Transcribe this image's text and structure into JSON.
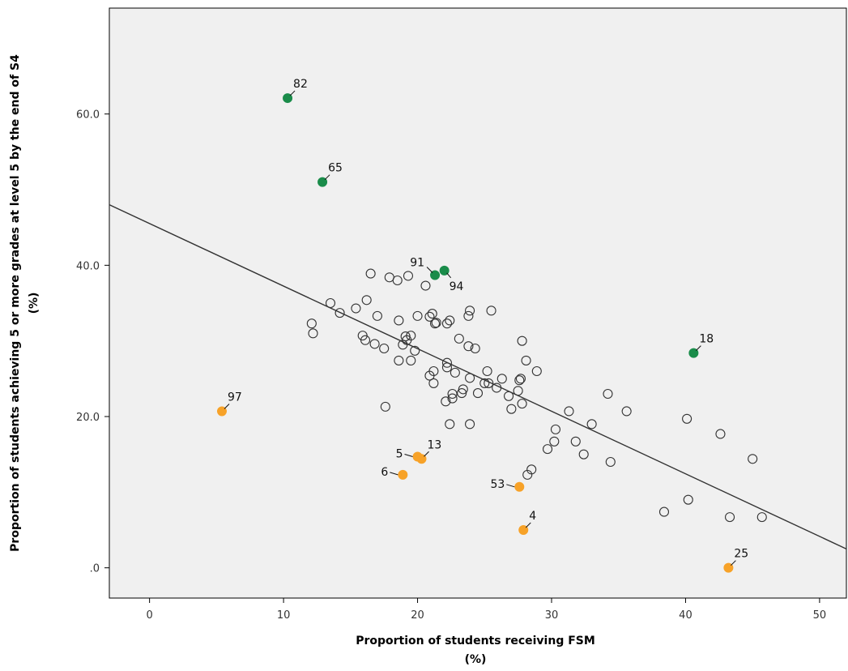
{
  "chart_data": {
    "type": "scatter",
    "xlabel": "Proportion of students receiving FSM",
    "xlabel_unit": "(%)",
    "ylabel": "Proportion of students achieving 5 or more grades at level 5 by the end of S4",
    "ylabel_unit": "(%)",
    "xlim": [
      -3,
      52
    ],
    "ylim": [
      -4,
      74
    ],
    "xticks": [
      0,
      10,
      20,
      30,
      40,
      50
    ],
    "xtick_labels": [
      "0",
      "10",
      "20",
      "30",
      "40",
      "50"
    ],
    "yticks": [
      0,
      20,
      40,
      60
    ],
    "ytick_labels": [
      ".0",
      "20.0",
      "40.0",
      "60.0"
    ],
    "grid": false,
    "colors": {
      "plot_bg": "#f0f0f0",
      "open_marker": "#333333",
      "high_outlier": "#1a8c4a",
      "low_outlier": "#f7a228",
      "fit_line": "#333333"
    },
    "fit_line": {
      "x": [
        -3,
        52
      ],
      "y": [
        48,
        2.5
      ]
    },
    "series": [
      {
        "marker": "open",
        "points": [
          [
            12.1,
            32.3
          ],
          [
            12.2,
            31.0
          ],
          [
            13.5,
            35.0
          ],
          [
            14.2,
            33.7
          ],
          [
            15.4,
            34.3
          ],
          [
            16.2,
            35.4
          ],
          [
            16.5,
            38.9
          ],
          [
            15.9,
            30.7
          ],
          [
            16.1,
            30.1
          ],
          [
            16.8,
            29.6
          ],
          [
            17.0,
            33.3
          ],
          [
            17.5,
            29.0
          ],
          [
            17.6,
            21.3
          ],
          [
            17.9,
            38.4
          ],
          [
            18.5,
            38.0
          ],
          [
            18.6,
            27.4
          ],
          [
            18.6,
            32.7
          ],
          [
            18.9,
            29.5
          ],
          [
            19.1,
            30.6
          ],
          [
            19.2,
            30.1
          ],
          [
            19.3,
            38.6
          ],
          [
            19.5,
            30.7
          ],
          [
            19.5,
            27.4
          ],
          [
            19.8,
            28.7
          ],
          [
            20.0,
            33.3
          ],
          [
            20.6,
            37.3
          ],
          [
            20.9,
            25.4
          ],
          [
            20.9,
            33.2
          ],
          [
            21.1,
            33.6
          ],
          [
            21.2,
            24.4
          ],
          [
            21.2,
            26.0
          ],
          [
            21.3,
            32.3
          ],
          [
            21.4,
            32.4
          ],
          [
            22.1,
            22.0
          ],
          [
            22.2,
            27.1
          ],
          [
            22.2,
            26.5
          ],
          [
            22.2,
            32.3
          ],
          [
            22.4,
            32.7
          ],
          [
            22.4,
            19.0
          ],
          [
            22.6,
            23.0
          ],
          [
            22.6,
            22.4
          ],
          [
            22.8,
            25.8
          ],
          [
            23.1,
            30.3
          ],
          [
            23.3,
            23.1
          ],
          [
            23.4,
            23.6
          ],
          [
            23.8,
            33.3
          ],
          [
            23.8,
            29.3
          ],
          [
            23.9,
            19.0
          ],
          [
            23.9,
            25.1
          ],
          [
            23.9,
            34.0
          ],
          [
            24.3,
            29.0
          ],
          [
            24.5,
            23.1
          ],
          [
            25.0,
            24.4
          ],
          [
            25.2,
            26.0
          ],
          [
            25.3,
            24.4
          ],
          [
            25.5,
            34.0
          ],
          [
            25.9,
            23.8
          ],
          [
            26.3,
            25.0
          ],
          [
            26.8,
            22.7
          ],
          [
            27.0,
            21.0
          ],
          [
            27.5,
            23.4
          ],
          [
            27.6,
            24.8
          ],
          [
            27.7,
            25.0
          ],
          [
            27.8,
            21.7
          ],
          [
            27.8,
            30.0
          ],
          [
            28.1,
            27.4
          ],
          [
            28.2,
            12.3
          ],
          [
            28.5,
            13.0
          ],
          [
            28.9,
            26.0
          ],
          [
            29.7,
            15.7
          ],
          [
            30.2,
            16.7
          ],
          [
            30.3,
            18.3
          ],
          [
            31.3,
            20.7
          ],
          [
            31.8,
            16.7
          ],
          [
            32.4,
            15.0
          ],
          [
            33.0,
            19.0
          ],
          [
            34.2,
            23.0
          ],
          [
            34.4,
            14.0
          ],
          [
            35.6,
            20.7
          ],
          [
            38.4,
            7.4
          ],
          [
            40.1,
            19.7
          ],
          [
            40.2,
            9.0
          ],
          [
            42.6,
            17.7
          ],
          [
            43.3,
            6.7
          ],
          [
            45.0,
            14.4
          ],
          [
            45.7,
            6.7
          ]
        ]
      },
      {
        "marker": "high",
        "points": [
          {
            "x": 10.3,
            "y": 62.1,
            "label": "82",
            "pos": "top-right"
          },
          {
            "x": 12.9,
            "y": 51.0,
            "label": "65",
            "pos": "top-right"
          },
          {
            "x": 21.3,
            "y": 38.7,
            "label": "91",
            "pos": "top-left"
          },
          {
            "x": 22.0,
            "y": 39.3,
            "label": "94",
            "pos": "bottom-right"
          },
          {
            "x": 40.6,
            "y": 28.4,
            "label": "18",
            "pos": "top-right"
          }
        ]
      },
      {
        "marker": "low",
        "points": [
          {
            "x": 5.4,
            "y": 20.7,
            "label": "97",
            "pos": "top-right"
          },
          {
            "x": 20.0,
            "y": 14.7,
            "label": "5",
            "pos": "left"
          },
          {
            "x": 20.3,
            "y": 14.4,
            "label": "13",
            "pos": "top-right"
          },
          {
            "x": 18.9,
            "y": 12.3,
            "label": "6",
            "pos": "left"
          },
          {
            "x": 27.6,
            "y": 10.7,
            "label": "53",
            "pos": "left"
          },
          {
            "x": 27.9,
            "y": 5.0,
            "label": "4",
            "pos": "top-right"
          },
          {
            "x": 43.2,
            "y": 0.0,
            "label": "25",
            "pos": "top-right"
          }
        ]
      }
    ]
  }
}
